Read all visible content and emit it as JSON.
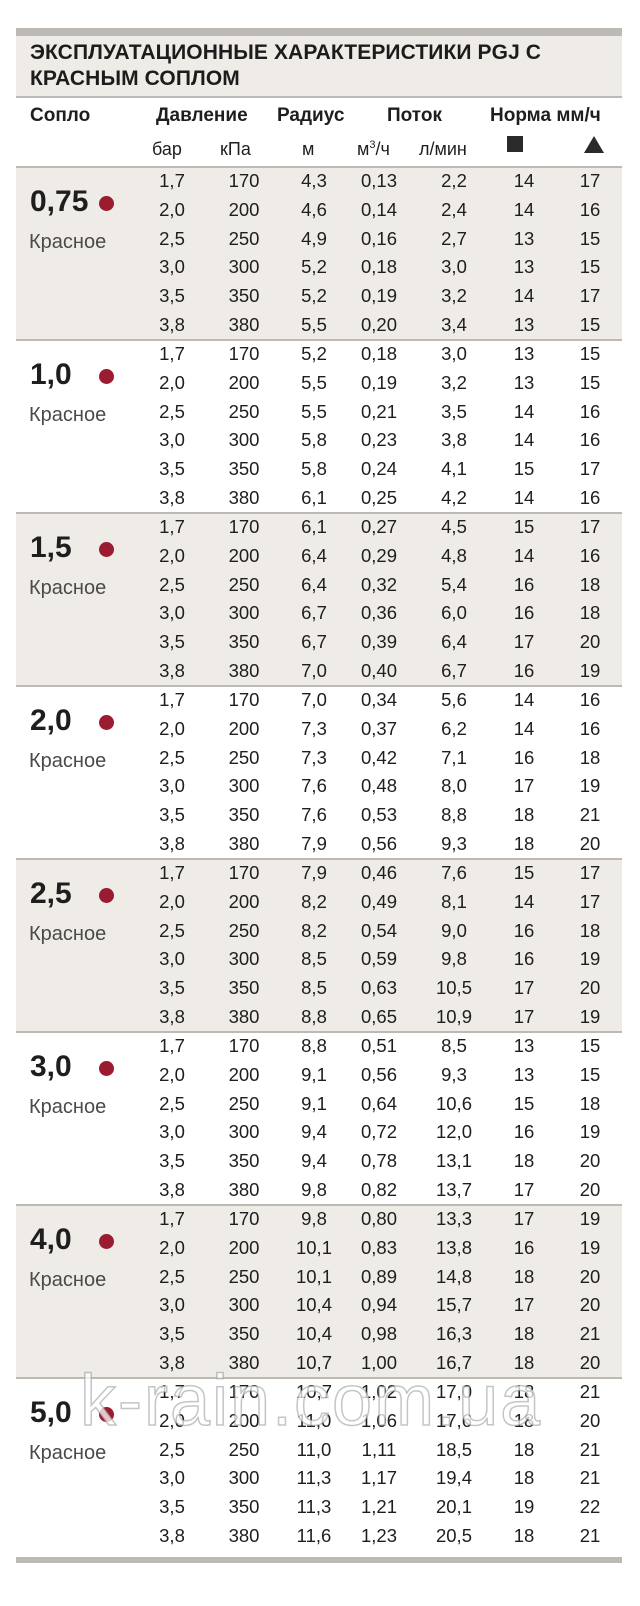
{
  "title": "ЭКСПЛУАТАЦИОННЫЕ ХАРАКТЕРИСТИКИ PGJ С КРАСНЫМ СОПЛОМ",
  "headers": {
    "nozzle": "Сопло",
    "pressure": "Давление",
    "radius": "Радиус",
    "flow": "Поток",
    "rate": "Норма мм/ч"
  },
  "subheaders": {
    "bar": "бар",
    "kpa": "кПа",
    "m": "м",
    "m3h_base": "м",
    "m3h_sup": "3",
    "m3h_tail": "/ч",
    "lmin": "л/мин"
  },
  "icons": {
    "square": "square-icon",
    "triangle": "triangle-icon"
  },
  "colors": {
    "shade": "#efece7",
    "rule": "#bdb9b4",
    "dot": "#9b1b30"
  },
  "watermark": "k-rain.com.ua",
  "groups": [
    {
      "size": "0,75",
      "color": "Красное",
      "rows": [
        [
          "1,7",
          "170",
          "4,3",
          "0,13",
          "2,2",
          "14",
          "17"
        ],
        [
          "2,0",
          "200",
          "4,6",
          "0,14",
          "2,4",
          "14",
          "16"
        ],
        [
          "2,5",
          "250",
          "4,9",
          "0,16",
          "2,7",
          "13",
          "15"
        ],
        [
          "3,0",
          "300",
          "5,2",
          "0,18",
          "3,0",
          "13",
          "15"
        ],
        [
          "3,5",
          "350",
          "5,2",
          "0,19",
          "3,2",
          "14",
          "17"
        ],
        [
          "3,8",
          "380",
          "5,5",
          "0,20",
          "3,4",
          "13",
          "15"
        ]
      ]
    },
    {
      "size": "1,0",
      "color": "Красное",
      "rows": [
        [
          "1,7",
          "170",
          "5,2",
          "0,18",
          "3,0",
          "13",
          "15"
        ],
        [
          "2,0",
          "200",
          "5,5",
          "0,19",
          "3,2",
          "13",
          "15"
        ],
        [
          "2,5",
          "250",
          "5,5",
          "0,21",
          "3,5",
          "14",
          "16"
        ],
        [
          "3,0",
          "300",
          "5,8",
          "0,23",
          "3,8",
          "14",
          "16"
        ],
        [
          "3,5",
          "350",
          "5,8",
          "0,24",
          "4,1",
          "15",
          "17"
        ],
        [
          "3,8",
          "380",
          "6,1",
          "0,25",
          "4,2",
          "14",
          "16"
        ]
      ]
    },
    {
      "size": "1,5",
      "color": "Красное",
      "rows": [
        [
          "1,7",
          "170",
          "6,1",
          "0,27",
          "4,5",
          "15",
          "17"
        ],
        [
          "2,0",
          "200",
          "6,4",
          "0,29",
          "4,8",
          "14",
          "16"
        ],
        [
          "2,5",
          "250",
          "6,4",
          "0,32",
          "5,4",
          "16",
          "18"
        ],
        [
          "3,0",
          "300",
          "6,7",
          "0,36",
          "6,0",
          "16",
          "18"
        ],
        [
          "3,5",
          "350",
          "6,7",
          "0,39",
          "6,4",
          "17",
          "20"
        ],
        [
          "3,8",
          "380",
          "7,0",
          "0,40",
          "6,7",
          "16",
          "19"
        ]
      ]
    },
    {
      "size": "2,0",
      "color": "Красное",
      "rows": [
        [
          "1,7",
          "170",
          "7,0",
          "0,34",
          "5,6",
          "14",
          "16"
        ],
        [
          "2,0",
          "200",
          "7,3",
          "0,37",
          "6,2",
          "14",
          "16"
        ],
        [
          "2,5",
          "250",
          "7,3",
          "0,42",
          "7,1",
          "16",
          "18"
        ],
        [
          "3,0",
          "300",
          "7,6",
          "0,48",
          "8,0",
          "17",
          "19"
        ],
        [
          "3,5",
          "350",
          "7,6",
          "0,53",
          "8,8",
          "18",
          "21"
        ],
        [
          "3,8",
          "380",
          "7,9",
          "0,56",
          "9,3",
          "18",
          "20"
        ]
      ]
    },
    {
      "size": "2,5",
      "color": "Красное",
      "rows": [
        [
          "1,7",
          "170",
          "7,9",
          "0,46",
          "7,6",
          "15",
          "17"
        ],
        [
          "2,0",
          "200",
          "8,2",
          "0,49",
          "8,1",
          "14",
          "17"
        ],
        [
          "2,5",
          "250",
          "8,2",
          "0,54",
          "9,0",
          "16",
          "18"
        ],
        [
          "3,0",
          "300",
          "8,5",
          "0,59",
          "9,8",
          "16",
          "19"
        ],
        [
          "3,5",
          "350",
          "8,5",
          "0,63",
          "10,5",
          "17",
          "20"
        ],
        [
          "3,8",
          "380",
          "8,8",
          "0,65",
          "10,9",
          "17",
          "19"
        ]
      ]
    },
    {
      "size": "3,0",
      "color": "Красное",
      "rows": [
        [
          "1,7",
          "170",
          "8,8",
          "0,51",
          "8,5",
          "13",
          "15"
        ],
        [
          "2,0",
          "200",
          "9,1",
          "0,56",
          "9,3",
          "13",
          "15"
        ],
        [
          "2,5",
          "250",
          "9,1",
          "0,64",
          "10,6",
          "15",
          "18"
        ],
        [
          "3,0",
          "300",
          "9,4",
          "0,72",
          "12,0",
          "16",
          "19"
        ],
        [
          "3,5",
          "350",
          "9,4",
          "0,78",
          "13,1",
          "18",
          "20"
        ],
        [
          "3,8",
          "380",
          "9,8",
          "0,82",
          "13,7",
          "17",
          "20"
        ]
      ]
    },
    {
      "size": "4,0",
      "color": "Красное",
      "rows": [
        [
          "1,7",
          "170",
          "9,8",
          "0,80",
          "13,3",
          "17",
          "19"
        ],
        [
          "2,0",
          "200",
          "10,1",
          "0,83",
          "13,8",
          "16",
          "19"
        ],
        [
          "2,5",
          "250",
          "10,1",
          "0,89",
          "14,8",
          "18",
          "20"
        ],
        [
          "3,0",
          "300",
          "10,4",
          "0,94",
          "15,7",
          "17",
          "20"
        ],
        [
          "3,5",
          "350",
          "10,4",
          "0,98",
          "16,3",
          "18",
          "21"
        ],
        [
          "3,8",
          "380",
          "10,7",
          "1,00",
          "16,7",
          "18",
          "20"
        ]
      ]
    },
    {
      "size": "5,0",
      "color": "Красное",
      "rows": [
        [
          "1,7",
          "170",
          "10,7",
          "1,02",
          "17,0",
          "18",
          "21"
        ],
        [
          "2,0",
          "200",
          "11,0",
          "1,06",
          "17,6",
          "18",
          "20"
        ],
        [
          "2,5",
          "250",
          "11,0",
          "1,11",
          "18,5",
          "18",
          "21"
        ],
        [
          "3,0",
          "300",
          "11,3",
          "1,17",
          "19,4",
          "18",
          "21"
        ],
        [
          "3,5",
          "350",
          "11,3",
          "1,21",
          "20,1",
          "19",
          "22"
        ],
        [
          "3,8",
          "380",
          "11,6",
          "1,23",
          "20,5",
          "18",
          "21"
        ]
      ]
    }
  ]
}
